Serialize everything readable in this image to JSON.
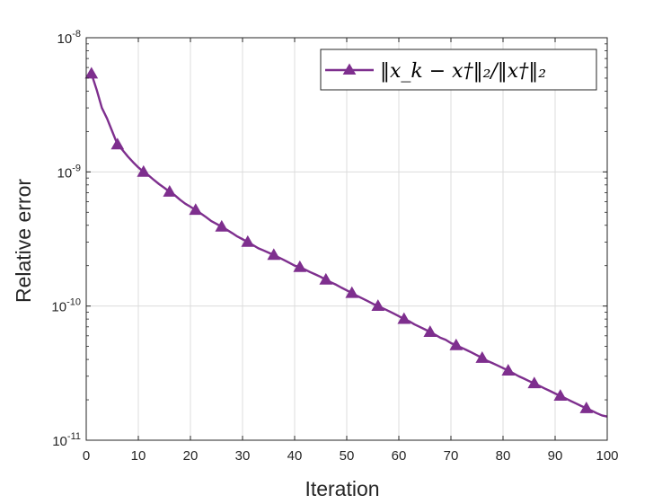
{
  "chart_data": {
    "type": "line",
    "xlabel": "Iteration",
    "ylabel": "Relative  error",
    "xlim": [
      0,
      100
    ],
    "ylim": [
      1e-11,
      1e-08
    ],
    "yscale": "log",
    "grid": true,
    "legend_placement": "top-right",
    "x_ticks": [
      0,
      10,
      20,
      30,
      40,
      50,
      60,
      70,
      80,
      90,
      100
    ],
    "y_ticks": [
      {
        "value": 1e-11,
        "base": "10",
        "exp": "-11"
      },
      {
        "value": 1e-10,
        "base": "10",
        "exp": "-10"
      },
      {
        "value": 1e-09,
        "base": "10",
        "exp": "-9"
      },
      {
        "value": 1e-08,
        "base": "10",
        "exp": "-8"
      }
    ],
    "series": [
      {
        "name": "‖x_k − x†‖₂/‖x†‖₂",
        "color": "#7E2F8E",
        "marker": "triangle-up",
        "x": [
          1,
          2,
          3,
          4,
          5,
          6,
          7,
          8,
          9,
          10,
          11,
          12,
          13,
          14,
          15,
          16,
          17,
          18,
          19,
          20,
          21,
          22,
          23,
          24,
          25,
          26,
          27,
          28,
          29,
          30,
          31,
          32,
          33,
          34,
          35,
          36,
          37,
          38,
          39,
          40,
          41,
          42,
          43,
          44,
          45,
          46,
          47,
          48,
          49,
          50,
          51,
          52,
          53,
          54,
          55,
          56,
          57,
          58,
          59,
          60,
          61,
          62,
          63,
          64,
          65,
          66,
          67,
          68,
          69,
          70,
          71,
          72,
          73,
          74,
          75,
          76,
          77,
          78,
          79,
          80,
          81,
          82,
          83,
          84,
          85,
          86,
          87,
          88,
          89,
          90,
          91,
          92,
          93,
          94,
          95,
          96,
          97,
          98,
          99,
          100
        ],
        "y": [
          5.4e-09,
          4.1e-09,
          3e-09,
          2.5e-09,
          2e-09,
          1.6e-09,
          1.45e-09,
          1.3e-09,
          1.18e-09,
          1.08e-09,
          1e-09,
          9.4e-10,
          8.7e-10,
          8.1e-10,
          7.6e-10,
          7.1e-10,
          6.7e-10,
          6.2e-10,
          5.8e-10,
          5.5e-10,
          5.2e-10,
          4.9e-10,
          4.6e-10,
          4.3e-10,
          4.1e-10,
          3.9e-10,
          3.7e-10,
          3.5e-10,
          3.3e-10,
          3.15e-10,
          3e-10,
          2.85e-10,
          2.7e-10,
          2.6e-10,
          2.5e-10,
          2.4e-10,
          2.3e-10,
          2.2e-10,
          2.1e-10,
          2e-10,
          1.95e-10,
          1.87e-10,
          1.79e-10,
          1.72e-10,
          1.65e-10,
          1.57e-10,
          1.5e-10,
          1.44e-10,
          1.37e-10,
          1.31e-10,
          1.25e-10,
          1.19e-10,
          1.14e-10,
          1.09e-10,
          1.04e-10,
          1e-10,
          9.6e-11,
          9.2e-11,
          8.8e-11,
          8.4e-11,
          8e-11,
          7.7e-11,
          7.3e-11,
          7e-11,
          6.7e-11,
          6.4e-11,
          6.1e-11,
          5.8e-11,
          5.6e-11,
          5.3e-11,
          5.1e-11,
          4.9e-11,
          4.7e-11,
          4.5e-11,
          4.3e-11,
          4.1e-11,
          3.9e-11,
          3.75e-11,
          3.6e-11,
          3.45e-11,
          3.3e-11,
          3.15e-11,
          3e-11,
          2.88e-11,
          2.76e-11,
          2.65e-11,
          2.54e-11,
          2.43e-11,
          2.33e-11,
          2.23e-11,
          2.14e-11,
          2.05e-11,
          1.96e-11,
          1.88e-11,
          1.8e-11,
          1.73e-11,
          1.66e-11,
          1.59e-11,
          1.53e-11,
          1.5e-11
        ],
        "marker_x": [
          1,
          6,
          11,
          16,
          21,
          26,
          31,
          36,
          41,
          46,
          51,
          56,
          61,
          66,
          71,
          76,
          81,
          86,
          91,
          96
        ]
      }
    ]
  }
}
